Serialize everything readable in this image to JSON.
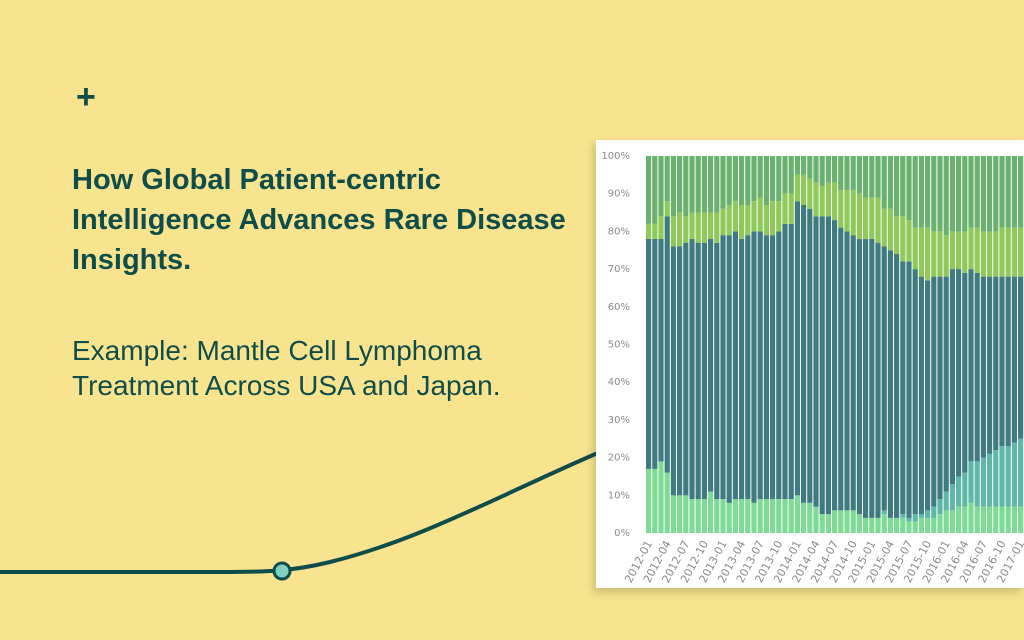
{
  "plus_symbol": "+",
  "headline": "How Global Patient-centric Intelligence Advances Rare Disease Insights.",
  "subheadline": "Example: Mantle Cell Lymphoma Treatment Across USA and Japan.",
  "colors": {
    "background": "#f8e48e",
    "text": "#0f4d4a",
    "series": [
      "#7edb96",
      "#5fb7a7",
      "#3f7a80",
      "#8ec95a",
      "#6ab06f"
    ]
  },
  "chart_data": {
    "type": "bar",
    "stacked": true,
    "ylim": [
      0,
      100
    ],
    "y_ticks": [
      "0%",
      "10%",
      "20%",
      "30%",
      "40%",
      "50%",
      "60%",
      "70%",
      "80%",
      "90%",
      "100%"
    ],
    "x_tick_labels": [
      "2012-01",
      "2012-04",
      "2012-07",
      "2012-10",
      "2013-01",
      "2013-04",
      "2013-07",
      "2013-10",
      "2014-01",
      "2014-04",
      "2014-07",
      "2014-10",
      "2015-01",
      "2015-04",
      "2015-07",
      "2015-10",
      "2016-01",
      "2016-04",
      "2016-07",
      "2016-10",
      "2017-01"
    ],
    "grid": false,
    "legend": "none",
    "months_count": 62,
    "series": [
      {
        "values": [
          17,
          17,
          19,
          16,
          10,
          10,
          10,
          9,
          9,
          9,
          11,
          9,
          9,
          8,
          9,
          9,
          9,
          8,
          9,
          9,
          9,
          9,
          9,
          9,
          10,
          8,
          8,
          7,
          5,
          5,
          6,
          6,
          6,
          6,
          5,
          4,
          4,
          4,
          5,
          4,
          4,
          4,
          3,
          3,
          4,
          4,
          4,
          5,
          6,
          6,
          7,
          7,
          8,
          7,
          7,
          7,
          7,
          7,
          7,
          7,
          7,
          7
        ]
      },
      {
        "values": [
          0,
          0,
          0,
          0,
          0,
          0,
          0,
          0,
          0,
          0,
          0,
          0,
          0,
          0,
          0,
          0,
          0,
          0,
          0,
          0,
          0,
          0,
          0,
          0,
          0,
          0,
          0,
          0,
          0,
          0,
          0,
          0,
          0,
          0,
          0,
          0,
          0,
          0,
          1,
          0,
          0,
          1,
          1,
          2,
          1,
          2,
          3,
          4,
          5,
          7,
          8,
          9,
          11,
          12,
          13,
          14,
          15,
          16,
          16,
          17,
          18,
          19
        ]
      },
      {
        "values": [
          61,
          61,
          59,
          68,
          66,
          66,
          67,
          69,
          68,
          68,
          67,
          68,
          70,
          71,
          71,
          69,
          70,
          72,
          71,
          70,
          70,
          71,
          73,
          73,
          78,
          79,
          78,
          77,
          79,
          79,
          77,
          75,
          74,
          73,
          73,
          74,
          74,
          73,
          70,
          71,
          70,
          67,
          68,
          65,
          63,
          61,
          61,
          59,
          57,
          57,
          55,
          53,
          51,
          50,
          48,
          47,
          46,
          45,
          45,
          44,
          43,
          42
        ]
      },
      {
        "values": [
          4,
          4,
          6,
          4,
          8,
          9,
          7,
          7,
          8,
          8,
          7,
          8,
          7,
          8,
          8,
          9,
          8,
          8,
          9,
          8,
          9,
          8,
          8,
          8,
          7,
          8,
          8,
          9,
          8,
          9,
          10,
          10,
          11,
          12,
          12,
          11,
          11,
          12,
          10,
          11,
          10,
          12,
          11,
          11,
          13,
          14,
          12,
          12,
          11,
          10,
          10,
          11,
          11,
          12,
          12,
          12,
          12,
          13,
          13,
          13,
          13,
          13
        ]
      },
      {
        "values": [
          18,
          18,
          16,
          12,
          16,
          15,
          16,
          15,
          15,
          15,
          15,
          15,
          14,
          13,
          12,
          13,
          13,
          12,
          11,
          13,
          12,
          12,
          10,
          10,
          5,
          5,
          6,
          7,
          8,
          7,
          7,
          9,
          9,
          9,
          10,
          11,
          11,
          11,
          14,
          14,
          16,
          16,
          17,
          19,
          19,
          19,
          20,
          20,
          21,
          20,
          20,
          20,
          19,
          19,
          20,
          20,
          20,
          19,
          19,
          19,
          19,
          19
        ]
      }
    ]
  }
}
